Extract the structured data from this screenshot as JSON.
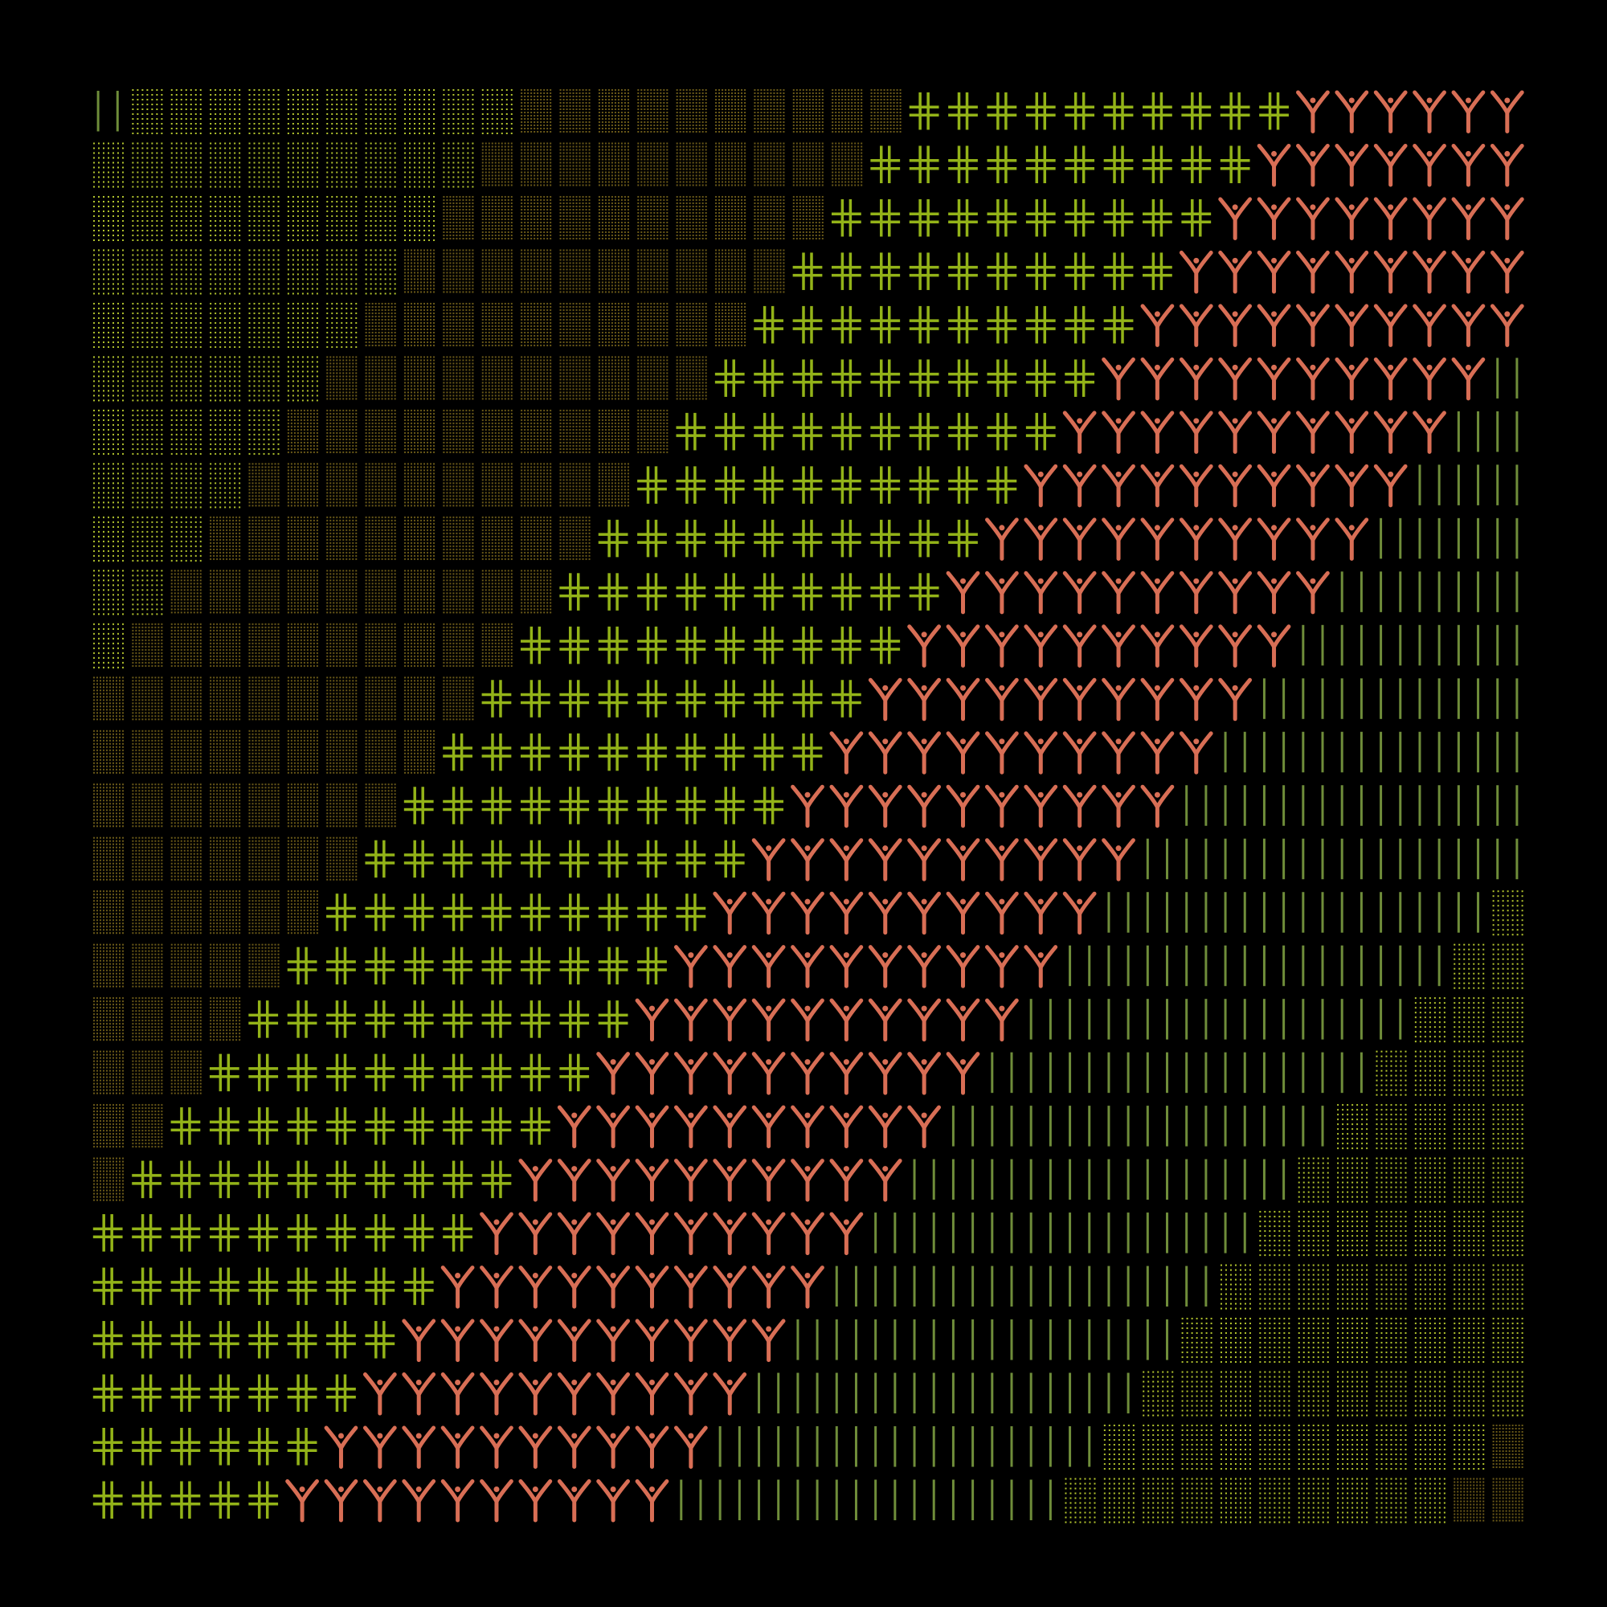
{
  "artwork": {
    "background": "#000000",
    "symbols": [
      {
        "name": "bars",
        "char": "|",
        "color": "#6f8d3a"
      },
      {
        "name": "dots-light",
        "char": "░",
        "color": "#b3c52e"
      },
      {
        "name": "dots-dark",
        "char": "▒",
        "color": "#6b5a18"
      },
      {
        "name": "cross",
        "char": "╬",
        "color": "#93b318"
      },
      {
        "name": "tee",
        "char": "Y",
        "color": "#d86e55"
      }
    ],
    "band_sequence": [
      "bars",
      "dots-light",
      "dots-dark",
      "cross",
      "tee"
    ],
    "grid": {
      "columns": 37,
      "rows": 27
    }
  }
}
